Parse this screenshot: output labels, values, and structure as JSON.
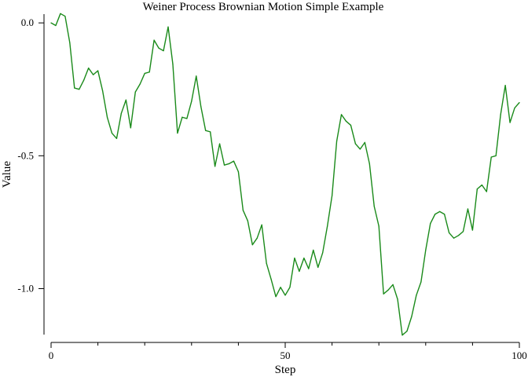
{
  "chart_data": {
    "type": "line",
    "title": "Weiner Process Brownian Motion Simple Example",
    "xlabel": "Step",
    "ylabel": "Value",
    "xlim": [
      0,
      100
    ],
    "ylim": [
      -1.17,
      0.03
    ],
    "x_ticks": [
      0,
      50,
      100
    ],
    "x_tick_labels": [
      "0",
      "50",
      "100"
    ],
    "x_minor_ticks": [
      10,
      20,
      30,
      40,
      60,
      70,
      80,
      90
    ],
    "y_ticks": [
      0.0,
      -0.5,
      -1.0
    ],
    "y_tick_labels": [
      "0.0",
      "-0.5",
      "-1.0"
    ],
    "grid": false,
    "color": "#1a8a1a",
    "series": [
      {
        "x": [
          0,
          1,
          2,
          3,
          4,
          5,
          6,
          7,
          8,
          9,
          10,
          11,
          12,
          13,
          14,
          15,
          16,
          17,
          18,
          19,
          20,
          21,
          22,
          23,
          24,
          25,
          26,
          27,
          28,
          29,
          30,
          31,
          32,
          33,
          34,
          35,
          36,
          37,
          38,
          39,
          40,
          41,
          42,
          43,
          44,
          45,
          46,
          47,
          48,
          49,
          50,
          51,
          52,
          53,
          54,
          55,
          56,
          57,
          58,
          59,
          60,
          61,
          62,
          63,
          64,
          65,
          66,
          67,
          68,
          69,
          70,
          71,
          72,
          73,
          74,
          75,
          76,
          77,
          78,
          79,
          80,
          81,
          82,
          83,
          84,
          85,
          86,
          87,
          88,
          89,
          90,
          91,
          92,
          93,
          94,
          95,
          96,
          97,
          98,
          99,
          100
        ],
        "values": [
          0.0,
          -0.01,
          0.035,
          0.025,
          -0.075,
          -0.245,
          -0.25,
          -0.215,
          -0.17,
          -0.195,
          -0.18,
          -0.255,
          -0.355,
          -0.415,
          -0.435,
          -0.34,
          -0.29,
          -0.395,
          -0.26,
          -0.23,
          -0.19,
          -0.185,
          -0.065,
          -0.095,
          -0.105,
          -0.015,
          -0.155,
          -0.415,
          -0.355,
          -0.36,
          -0.295,
          -0.2,
          -0.315,
          -0.405,
          -0.41,
          -0.54,
          -0.455,
          -0.535,
          -0.53,
          -0.52,
          -0.56,
          -0.705,
          -0.745,
          -0.835,
          -0.81,
          -0.76,
          -0.905,
          -0.965,
          -1.03,
          -0.995,
          -1.025,
          -0.995,
          -0.885,
          -0.935,
          -0.885,
          -0.925,
          -0.855,
          -0.92,
          -0.865,
          -0.765,
          -0.65,
          -0.445,
          -0.345,
          -0.37,
          -0.385,
          -0.455,
          -0.475,
          -0.45,
          -0.53,
          -0.69,
          -0.765,
          -1.02,
          -1.005,
          -0.985,
          -1.04,
          -1.175,
          -1.16,
          -1.105,
          -1.025,
          -0.975,
          -0.855,
          -0.755,
          -0.72,
          -0.71,
          -0.72,
          -0.79,
          -0.81,
          -0.8,
          -0.785,
          -0.7,
          -0.78,
          -0.625,
          -0.61,
          -0.635,
          -0.505,
          -0.5,
          -0.345,
          -0.235,
          -0.375,
          -0.32,
          -0.3
        ]
      }
    ]
  }
}
